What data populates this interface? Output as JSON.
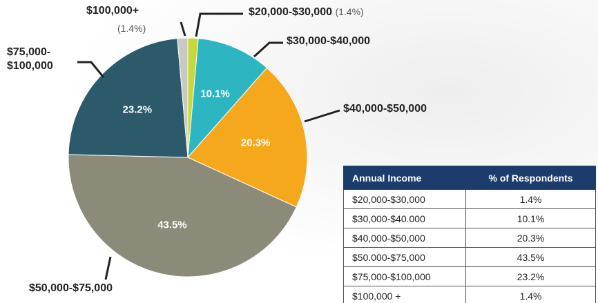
{
  "chart_data": {
    "type": "pie",
    "categories": [
      "$20,000-$30,000",
      "$30,000-$40,000",
      "$40,000-$50,000",
      "$50,000-$75,000",
      "$75,000-$100,000",
      "$100,000+"
    ],
    "values": [
      1.4,
      10.1,
      20.3,
      43.5,
      23.2,
      1.4
    ],
    "value_labels": [
      "(1.4%)",
      "10.1%",
      "20.3%",
      "43.5%",
      "23.2%",
      "(1.4%)"
    ],
    "colors": [
      "#c6d83a",
      "#2db6c1",
      "#f5a81c",
      "#8c8a79",
      "#2d5a6b",
      "#c9c9c5"
    ]
  },
  "table": {
    "header": [
      "Annual Income",
      "% of Respondents"
    ],
    "rows": [
      [
        "$20,000-$30,000",
        "1.4%"
      ],
      [
        "$30,000-$40.000",
        "10.1%"
      ],
      [
        "$40,000-$50,000",
        "20.3%"
      ],
      [
        "$50.000-$75,000",
        "43.5%"
      ],
      [
        "$75,000-$100,000",
        "23.2%"
      ],
      [
        "$100,000 +",
        "1.4%"
      ]
    ]
  }
}
